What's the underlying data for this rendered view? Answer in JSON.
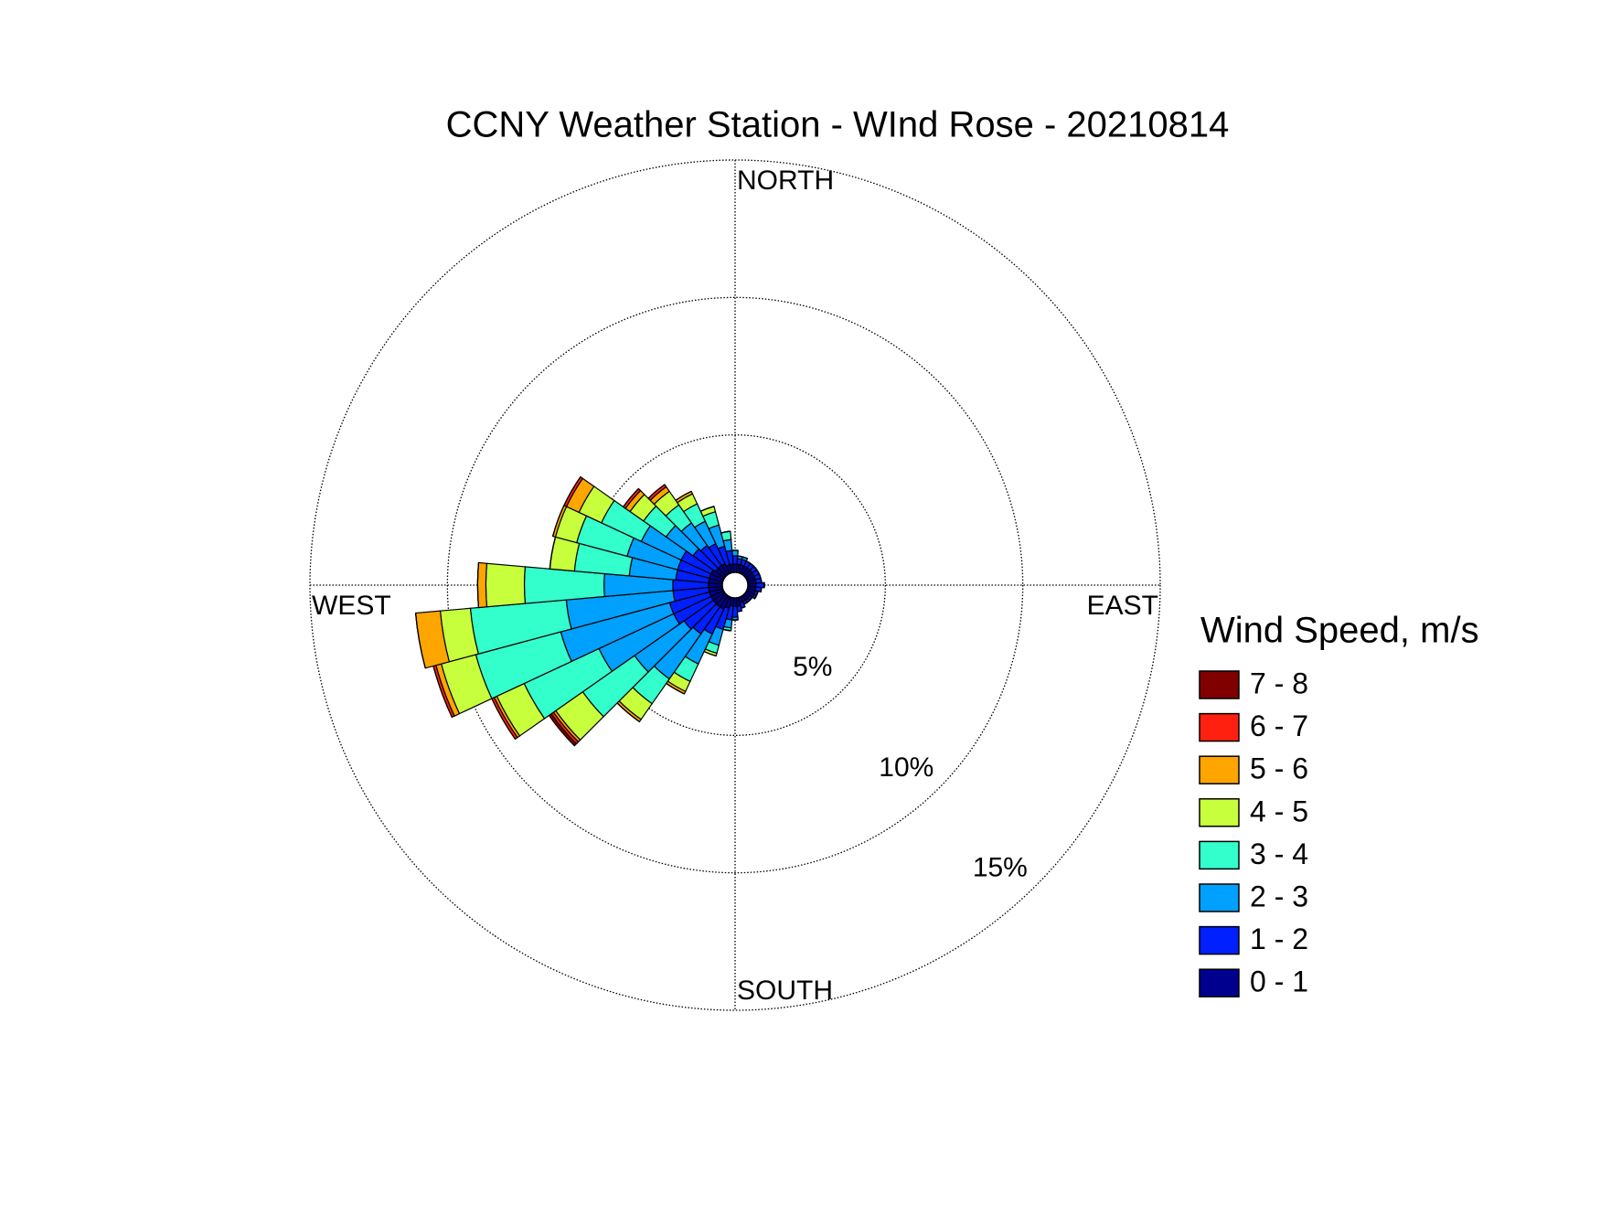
{
  "chart_data": {
    "type": "windrose",
    "title": "CCNY Weather Station - WInd Rose - 20210814",
    "legend_title": "Wind Speed, m/s",
    "direction_labels": [
      "NORTH",
      "EAST",
      "SOUTH",
      "WEST"
    ],
    "x": [
      0,
      10,
      20,
      30,
      40,
      50,
      60,
      70,
      80,
      90,
      100,
      110,
      120,
      130,
      140,
      150,
      160,
      170,
      180,
      190,
      200,
      210,
      220,
      230,
      240,
      250,
      260,
      270,
      280,
      290,
      300,
      310,
      320,
      330,
      340,
      350
    ],
    "rlim": [
      0,
      15
    ],
    "rticks": [
      {
        "value": 5,
        "label": "5%"
      },
      {
        "value": 10,
        "label": "10%"
      },
      {
        "value": 15,
        "label": "15%"
      }
    ],
    "grid": true,
    "legend": "right",
    "series": [
      {
        "name": "0 - 1",
        "color": "#00008f",
        "values": [
          0.3,
          0.3,
          0.3,
          0.3,
          0.3,
          0.3,
          0.3,
          0.3,
          0.3,
          0.3,
          0.3,
          0.3,
          0.3,
          0.2,
          0.2,
          0.2,
          0.2,
          0.3,
          0.3,
          0.3,
          0.4,
          0.5,
          0.5,
          0.5,
          0.5,
          0.5,
          0.5,
          0.5,
          0.5,
          0.5,
          0.5,
          0.4,
          0.4,
          0.4,
          0.3,
          0.3
        ]
      },
      {
        "name": "1 - 2",
        "color": "#0020ff",
        "values": [
          0.3,
          0.2,
          0.2,
          0.2,
          0.2,
          0.2,
          0.2,
          0.2,
          0.2,
          0.3,
          0.2,
          0.1,
          0.1,
          0.1,
          0.1,
          0.1,
          0.2,
          0.2,
          0.4,
          0.5,
          0.8,
          1.0,
          1.2,
          1.3,
          1.5,
          1.5,
          1.3,
          1.3,
          1.2,
          1.2,
          1.2,
          1.0,
          0.9,
          0.8,
          0.7,
          0.5
        ]
      },
      {
        "name": "2 - 3",
        "color": "#00a0ff",
        "values": [
          0.2,
          0.1,
          0.1,
          0,
          0,
          0,
          0,
          0,
          0,
          0,
          0,
          0,
          0,
          0,
          0,
          0,
          0,
          0,
          0.1,
          0.3,
          0.6,
          1.2,
          2.0,
          2.2,
          3.0,
          4.1,
          3.9,
          2.5,
          1.7,
          1.9,
          1.6,
          1.2,
          1.0,
          0.9,
          0.8,
          0.4
        ]
      },
      {
        "name": "3 - 4",
        "color": "#33ffcc",
        "values": [
          0,
          0,
          0,
          0,
          0,
          0,
          0,
          0,
          0,
          0,
          0,
          0,
          0,
          0,
          0,
          0,
          0,
          0,
          0,
          0.1,
          0.3,
          0.7,
          1.1,
          2.3,
          3.0,
          3.2,
          3.5,
          2.9,
          2.0,
          1.9,
          1.6,
          1.0,
          0.8,
          0.7,
          0.5,
          0.3
        ]
      },
      {
        "name": "4 - 5",
        "color": "#c8ff3c",
        "values": [
          0,
          0,
          0,
          0,
          0,
          0,
          0,
          0,
          0,
          0,
          0,
          0,
          0,
          0,
          0,
          0,
          0,
          0,
          0,
          0,
          0.1,
          0.4,
          0.7,
          1.2,
          1.1,
          1.3,
          1.1,
          1.4,
          0.9,
          0.8,
          0.9,
          0.6,
          0.6,
          0.4,
          0.2,
          0
        ]
      },
      {
        "name": "5 - 6",
        "color": "#ffa500",
        "values": [
          0,
          0,
          0,
          0,
          0,
          0,
          0,
          0,
          0,
          0,
          0,
          0,
          0,
          0,
          0,
          0,
          0,
          0,
          0,
          0,
          0,
          0.1,
          0.1,
          0.1,
          0.1,
          0.2,
          0.9,
          0.3,
          0,
          0.1,
          0.5,
          0.2,
          0.2,
          0.1,
          0,
          0
        ]
      },
      {
        "name": "6 - 7",
        "color": "#ff2010",
        "values": [
          0,
          0,
          0,
          0,
          0,
          0,
          0,
          0,
          0,
          0,
          0,
          0,
          0,
          0,
          0,
          0,
          0,
          0,
          0,
          0,
          0,
          0,
          0,
          0.1,
          0.1,
          0.1,
          0,
          0,
          0,
          0,
          0.1,
          0.1,
          0.1,
          0,
          0,
          0
        ]
      },
      {
        "name": "7 - 8",
        "color": "#800000",
        "values": [
          0,
          0,
          0,
          0,
          0,
          0,
          0,
          0,
          0,
          0,
          0,
          0,
          0,
          0,
          0,
          0,
          0,
          0,
          0,
          0,
          0,
          0,
          0,
          0.1,
          0,
          0,
          0,
          0,
          0,
          0,
          0,
          0,
          0,
          0,
          0,
          0
        ]
      }
    ]
  }
}
